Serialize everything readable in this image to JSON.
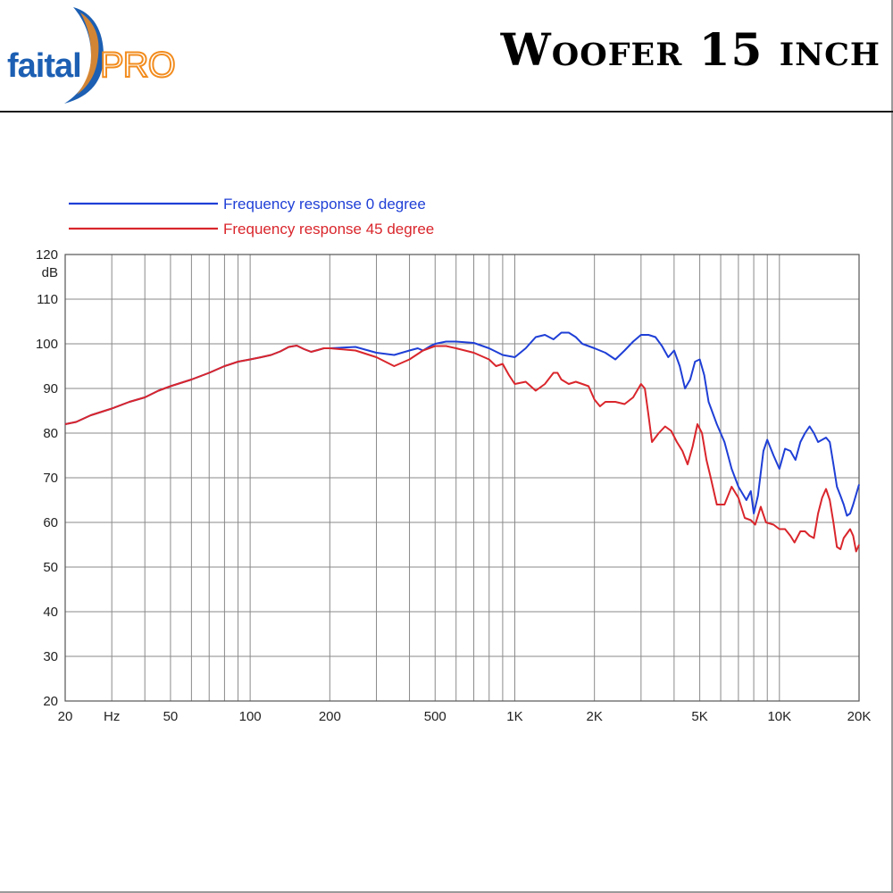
{
  "header": {
    "brand_left": "faital",
    "brand_right": "PRO",
    "title": "Woofer 15 inch"
  },
  "colors": {
    "series_0": "#1f3fd6",
    "series_45": "#d9262c",
    "brand_blue": "#1c5fb3",
    "brand_orange": "#f28c1e"
  },
  "chart_data": {
    "type": "line",
    "title": "",
    "xlabel": "Hz",
    "ylabel": "dB",
    "x_scale": "log",
    "xlim": [
      20,
      20000
    ],
    "ylim": [
      20,
      120
    ],
    "grid": true,
    "legend_position": "top-left",
    "x_ticks": [
      {
        "value": 20,
        "label": "20"
      },
      {
        "value": 30,
        "label": "Hz"
      },
      {
        "value": 50,
        "label": "50"
      },
      {
        "value": 100,
        "label": "100"
      },
      {
        "value": 200,
        "label": "200"
      },
      {
        "value": 500,
        "label": "500"
      },
      {
        "value": 1000,
        "label": "1K"
      },
      {
        "value": 2000,
        "label": "2K"
      },
      {
        "value": 5000,
        "label": "5K"
      },
      {
        "value": 10000,
        "label": "10K"
      },
      {
        "value": 20000,
        "label": "20K"
      }
    ],
    "y_ticks": [
      {
        "value": 20,
        "label": "20"
      },
      {
        "value": 30,
        "label": "30"
      },
      {
        "value": 40,
        "label": "40"
      },
      {
        "value": 50,
        "label": "50"
      },
      {
        "value": 60,
        "label": "60"
      },
      {
        "value": 70,
        "label": "70"
      },
      {
        "value": 80,
        "label": "80"
      },
      {
        "value": 90,
        "label": "90"
      },
      {
        "value": 100,
        "label": "100"
      },
      {
        "value": 110,
        "label": "110"
      },
      {
        "value": 120,
        "label": "120"
      }
    ],
    "series": [
      {
        "name": "Frequency response 0 degree",
        "color": "#1f3fd6",
        "points": [
          [
            20,
            82
          ],
          [
            22,
            82.5
          ],
          [
            25,
            84
          ],
          [
            30,
            85.5
          ],
          [
            35,
            87
          ],
          [
            40,
            88
          ],
          [
            45,
            89.5
          ],
          [
            50,
            90.5
          ],
          [
            60,
            92
          ],
          [
            70,
            93.5
          ],
          [
            80,
            95
          ],
          [
            90,
            96
          ],
          [
            100,
            96.5
          ],
          [
            110,
            97
          ],
          [
            120,
            97.5
          ],
          [
            130,
            98.3
          ],
          [
            140,
            99.3
          ],
          [
            150,
            99.6
          ],
          [
            160,
            98.8
          ],
          [
            170,
            98.2
          ],
          [
            180,
            98.6
          ],
          [
            190,
            99
          ],
          [
            200,
            99
          ],
          [
            250,
            99.3
          ],
          [
            300,
            98
          ],
          [
            350,
            97.5
          ],
          [
            400,
            98.5
          ],
          [
            430,
            99
          ],
          [
            450,
            98.5
          ],
          [
            480,
            99.5
          ],
          [
            500,
            100
          ],
          [
            550,
            100.5
          ],
          [
            600,
            100.5
          ],
          [
            700,
            100.2
          ],
          [
            800,
            99
          ],
          [
            900,
            97.5
          ],
          [
            1000,
            97
          ],
          [
            1100,
            99
          ],
          [
            1200,
            101.5
          ],
          [
            1300,
            102
          ],
          [
            1400,
            101
          ],
          [
            1500,
            102.5
          ],
          [
            1600,
            102.5
          ],
          [
            1700,
            101.5
          ],
          [
            1800,
            100
          ],
          [
            2000,
            99
          ],
          [
            2200,
            98
          ],
          [
            2400,
            96.5
          ],
          [
            2600,
            98.5
          ],
          [
            2800,
            100.5
          ],
          [
            3000,
            102
          ],
          [
            3200,
            102
          ],
          [
            3400,
            101.5
          ],
          [
            3600,
            99.5
          ],
          [
            3800,
            97
          ],
          [
            4000,
            98.5
          ],
          [
            4200,
            95
          ],
          [
            4400,
            90
          ],
          [
            4600,
            92
          ],
          [
            4800,
            96
          ],
          [
            5000,
            96.5
          ],
          [
            5200,
            93
          ],
          [
            5400,
            87
          ],
          [
            5800,
            82
          ],
          [
            6200,
            78
          ],
          [
            6600,
            72
          ],
          [
            7000,
            68
          ],
          [
            7500,
            65
          ],
          [
            7800,
            67
          ],
          [
            8000,
            62
          ],
          [
            8300,
            66
          ],
          [
            8700,
            76
          ],
          [
            9000,
            78.5
          ],
          [
            9500,
            75
          ],
          [
            10000,
            72
          ],
          [
            10500,
            76.5
          ],
          [
            11000,
            76
          ],
          [
            11500,
            74
          ],
          [
            12000,
            78
          ],
          [
            12500,
            80
          ],
          [
            13000,
            81.5
          ],
          [
            13500,
            80
          ],
          [
            14000,
            78
          ],
          [
            15000,
            79
          ],
          [
            15500,
            78
          ],
          [
            16000,
            73
          ],
          [
            16500,
            68
          ],
          [
            17000,
            66
          ],
          [
            17500,
            64
          ],
          [
            18000,
            61.5
          ],
          [
            18500,
            62
          ],
          [
            19000,
            64
          ],
          [
            20000,
            68.5
          ]
        ]
      },
      {
        "name": "Frequency response 45 degree",
        "color": "#d9262c",
        "points": [
          [
            20,
            82
          ],
          [
            22,
            82.5
          ],
          [
            25,
            84
          ],
          [
            30,
            85.5
          ],
          [
            35,
            87
          ],
          [
            40,
            88
          ],
          [
            45,
            89.5
          ],
          [
            50,
            90.5
          ],
          [
            60,
            92
          ],
          [
            70,
            93.5
          ],
          [
            80,
            95
          ],
          [
            90,
            96
          ],
          [
            100,
            96.5
          ],
          [
            110,
            97
          ],
          [
            120,
            97.5
          ],
          [
            130,
            98.3
          ],
          [
            140,
            99.3
          ],
          [
            150,
            99.6
          ],
          [
            160,
            98.8
          ],
          [
            170,
            98.2
          ],
          [
            180,
            98.6
          ],
          [
            190,
            99
          ],
          [
            200,
            99
          ],
          [
            250,
            98.5
          ],
          [
            300,
            97
          ],
          [
            350,
            95
          ],
          [
            400,
            96.5
          ],
          [
            450,
            98.5
          ],
          [
            500,
            99.5
          ],
          [
            550,
            99.5
          ],
          [
            600,
            99
          ],
          [
            700,
            98
          ],
          [
            800,
            96.5
          ],
          [
            850,
            95
          ],
          [
            900,
            95.5
          ],
          [
            950,
            93
          ],
          [
            1000,
            91
          ],
          [
            1100,
            91.5
          ],
          [
            1200,
            89.5
          ],
          [
            1300,
            91
          ],
          [
            1400,
            93.5
          ],
          [
            1450,
            93.5
          ],
          [
            1500,
            92
          ],
          [
            1600,
            91
          ],
          [
            1700,
            91.5
          ],
          [
            1800,
            91
          ],
          [
            1900,
            90.5
          ],
          [
            2000,
            87.5
          ],
          [
            2100,
            86
          ],
          [
            2200,
            87
          ],
          [
            2400,
            87
          ],
          [
            2600,
            86.5
          ],
          [
            2800,
            88
          ],
          [
            3000,
            91
          ],
          [
            3100,
            90
          ],
          [
            3200,
            84
          ],
          [
            3300,
            78
          ],
          [
            3500,
            80
          ],
          [
            3700,
            81.5
          ],
          [
            3900,
            80.5
          ],
          [
            4100,
            78
          ],
          [
            4300,
            76
          ],
          [
            4500,
            73
          ],
          [
            4700,
            77
          ],
          [
            4900,
            82
          ],
          [
            5100,
            80
          ],
          [
            5300,
            74
          ],
          [
            5500,
            70
          ],
          [
            5800,
            64
          ],
          [
            6200,
            64
          ],
          [
            6600,
            68
          ],
          [
            7000,
            65.5
          ],
          [
            7400,
            61
          ],
          [
            7800,
            60.5
          ],
          [
            8100,
            59.5
          ],
          [
            8500,
            63.5
          ],
          [
            8900,
            60
          ],
          [
            9500,
            59.5
          ],
          [
            10000,
            58.5
          ],
          [
            10500,
            58.5
          ],
          [
            11000,
            57
          ],
          [
            11400,
            55.5
          ],
          [
            12000,
            58
          ],
          [
            12500,
            58
          ],
          [
            13000,
            57
          ],
          [
            13500,
            56.5
          ],
          [
            14000,
            62
          ],
          [
            14500,
            65.5
          ],
          [
            15000,
            67.5
          ],
          [
            15500,
            65
          ],
          [
            16000,
            60
          ],
          [
            16500,
            54.5
          ],
          [
            17000,
            54
          ],
          [
            17500,
            56.5
          ],
          [
            18000,
            57.5
          ],
          [
            18500,
            58.5
          ],
          [
            19000,
            57
          ],
          [
            19500,
            53.5
          ],
          [
            20000,
            55
          ]
        ]
      }
    ]
  }
}
